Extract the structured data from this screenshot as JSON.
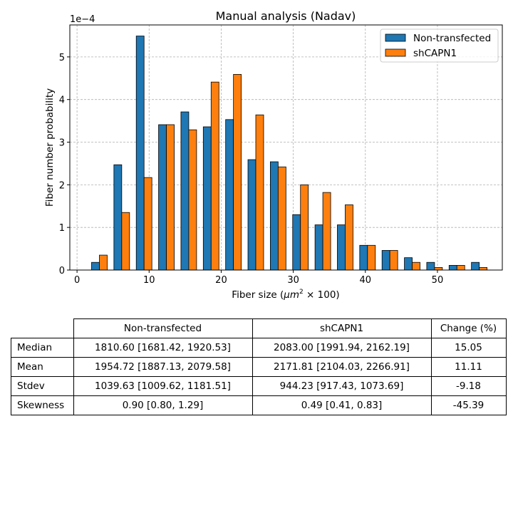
{
  "chart_data": {
    "type": "bar",
    "title": "Manual analysis (Nadav)",
    "xlabel_prefix": "Fiber size (",
    "xlabel_math": "μm",
    "xlabel_sup": "2",
    "xlabel_suffix": " × 100)",
    "ylabel": "Fiber number probability",
    "y_offset_label": "1e−4",
    "xlim": [
      -1,
      59
    ],
    "ylim": [
      0,
      5.75
    ],
    "y_scale": 0.0001,
    "xticks": [
      0,
      10,
      20,
      30,
      40,
      50
    ],
    "yticks": [
      0,
      1,
      2,
      3,
      4,
      5
    ],
    "grid": true,
    "legend_position": "top-right",
    "bin_width": 3.1,
    "bin_centers": [
      3.1,
      6.2,
      9.3,
      12.4,
      15.5,
      18.6,
      21.7,
      24.8,
      27.9,
      31.0,
      34.1,
      37.2,
      40.3,
      43.4,
      46.5,
      49.6,
      52.7,
      55.8
    ],
    "series": [
      {
        "name": "Non-transfected",
        "color": "#1f77b4",
        "values": [
          0.18,
          2.47,
          5.49,
          3.41,
          3.71,
          3.36,
          3.53,
          2.59,
          2.54,
          1.3,
          1.06,
          1.06,
          0.58,
          0.46,
          0.29,
          0.18,
          0.11,
          0.18
        ]
      },
      {
        "name": "shCAPN1",
        "color": "#ff7f0e",
        "values": [
          0.35,
          1.35,
          2.17,
          3.41,
          3.29,
          4.41,
          4.59,
          3.64,
          2.42,
          2.0,
          1.82,
          1.53,
          0.58,
          0.46,
          0.18,
          0.06,
          0.11,
          0.06
        ]
      }
    ]
  },
  "table": {
    "columns": [
      "Non-transfected",
      "shCAPN1",
      "Change (%)"
    ],
    "rows": [
      {
        "label": "Median",
        "cells": [
          "1810.60 [1681.42, 1920.53]",
          "2083.00 [1991.94, 2162.19]",
          "15.05"
        ]
      },
      {
        "label": "Mean",
        "cells": [
          "1954.72 [1887.13, 2079.58]",
          "2171.81 [2104.03, 2266.91]",
          "11.11"
        ]
      },
      {
        "label": "Stdev",
        "cells": [
          "1039.63 [1009.62, 1181.51]",
          "944.23 [917.43, 1073.69]",
          "-9.18"
        ]
      },
      {
        "label": "Skewness",
        "cells": [
          "0.90 [0.80, 1.29]",
          "0.49 [0.41, 0.83]",
          "-45.39"
        ]
      }
    ]
  }
}
